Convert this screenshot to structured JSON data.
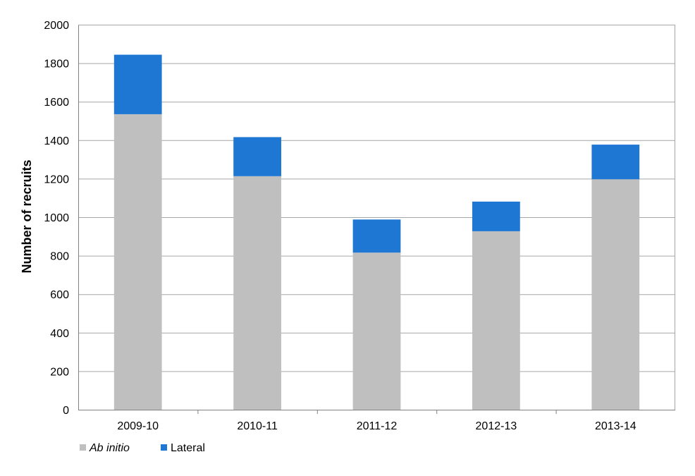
{
  "chart_data": {
    "type": "bar",
    "stacked": true,
    "categories": [
      "2009-10",
      "2010-11",
      "2011-12",
      "2012-13",
      "2013-14"
    ],
    "series": [
      {
        "name": "Ab initio",
        "values": [
          1535,
          1213,
          816,
          927,
          1197
        ],
        "color": "#bfbfbf"
      },
      {
        "name": "Lateral",
        "values": [
          309,
          203,
          172,
          154,
          180
        ],
        "color": "#1f77d4"
      }
    ],
    "title": "",
    "xlabel": "",
    "ylabel": "Number of recruits",
    "ylim": [
      0,
      2000
    ],
    "yticks": [
      "0",
      "200",
      "400",
      "600",
      "800",
      "1000",
      "1200",
      "1400",
      "1600",
      "1800",
      "2000"
    ],
    "grid": true,
    "legend_position": "bottom-left",
    "gridline_color": "#a6a6a6",
    "axis_color": "#808080"
  }
}
